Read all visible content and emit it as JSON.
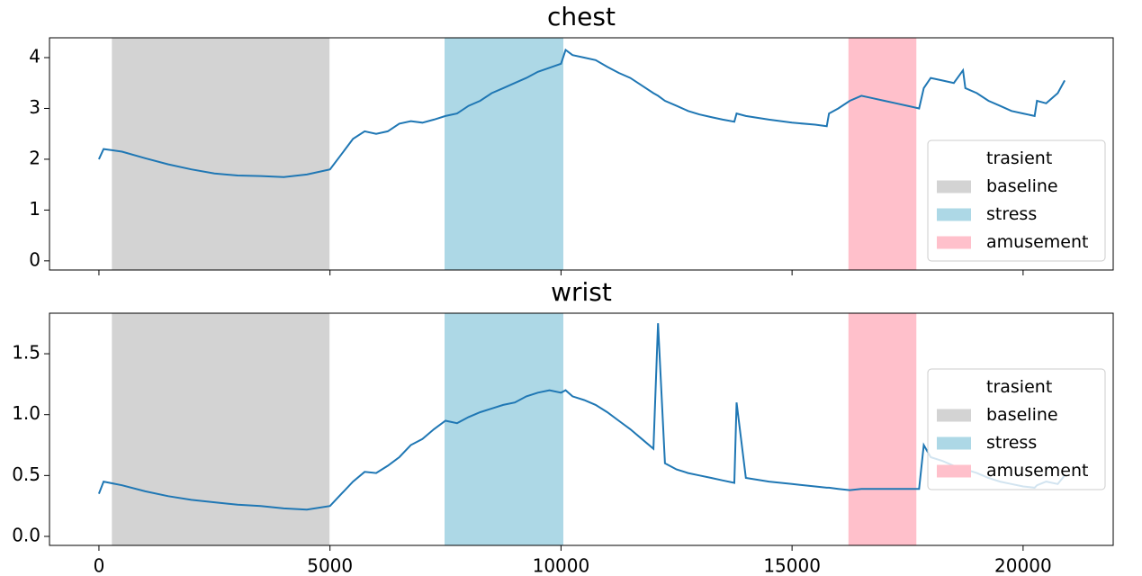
{
  "chart_data": [
    {
      "type": "line",
      "title": "chest",
      "x": [
        0,
        100,
        500,
        1000,
        1500,
        2000,
        2500,
        3000,
        3500,
        4000,
        4500,
        5000,
        5250,
        5500,
        5750,
        6000,
        6250,
        6500,
        6750,
        7000,
        7250,
        7500,
        7750,
        8000,
        8250,
        8500,
        8750,
        9000,
        9250,
        9500,
        9750,
        10000,
        10100,
        10250,
        10500,
        10750,
        11000,
        11250,
        11500,
        11750,
        12000,
        12100,
        12250,
        12500,
        12750,
        13000,
        13250,
        13500,
        13750,
        13800,
        14000,
        14500,
        15000,
        15500,
        15750,
        15800,
        16000,
        16250,
        16500,
        16750,
        17000,
        17250,
        17500,
        17750,
        17850,
        18000,
        18250,
        18500,
        18700,
        18750,
        19000,
        19250,
        19500,
        19750,
        20000,
        20250,
        20300,
        20500,
        20750,
        20900
      ],
      "values": [
        2.0,
        2.2,
        2.15,
        2.02,
        1.9,
        1.8,
        1.72,
        1.68,
        1.67,
        1.65,
        1.7,
        1.8,
        2.1,
        2.4,
        2.55,
        2.5,
        2.55,
        2.7,
        2.75,
        2.72,
        2.78,
        2.85,
        2.9,
        3.05,
        3.15,
        3.3,
        3.4,
        3.5,
        3.6,
        3.72,
        3.8,
        3.88,
        4.15,
        4.05,
        4.0,
        3.95,
        3.82,
        3.7,
        3.6,
        3.45,
        3.3,
        3.25,
        3.15,
        3.05,
        2.95,
        2.88,
        2.83,
        2.78,
        2.74,
        2.9,
        2.85,
        2.78,
        2.72,
        2.68,
        2.65,
        2.9,
        3.0,
        3.15,
        3.25,
        3.2,
        3.15,
        3.1,
        3.05,
        3.0,
        3.4,
        3.6,
        3.55,
        3.5,
        3.75,
        3.4,
        3.3,
        3.15,
        3.05,
        2.95,
        2.9,
        2.85,
        3.15,
        3.1,
        3.3,
        3.55
      ],
      "color": "#1f77b4",
      "xlim": [
        -1070,
        21950
      ],
      "xticks": [
        0,
        5000,
        10000,
        15000,
        20000
      ],
      "ylim": [
        -0.18,
        4.39
      ],
      "yticks": [
        0,
        1,
        2,
        3,
        4
      ],
      "legend": "lower right",
      "spans": [
        {
          "name": "trasient",
          "color": "#ffffff"
        },
        {
          "name": "baseline",
          "color": "#d3d3d3",
          "ranges": [
            [
              280,
              4990
            ]
          ]
        },
        {
          "name": "stress",
          "color": "#add8e6",
          "ranges": [
            [
              7480,
              10050
            ]
          ]
        },
        {
          "name": "amusement",
          "color": "#ffc0cb",
          "ranges": [
            [
              16220,
              17690
            ]
          ]
        }
      ]
    },
    {
      "type": "line",
      "title": "wrist",
      "x": [
        0,
        100,
        500,
        1000,
        1500,
        2000,
        2500,
        3000,
        3500,
        4000,
        4500,
        5000,
        5250,
        5500,
        5750,
        6000,
        6250,
        6500,
        6750,
        7000,
        7250,
        7500,
        7750,
        8000,
        8250,
        8500,
        8750,
        9000,
        9250,
        9500,
        9750,
        10000,
        10100,
        10250,
        10500,
        10750,
        11000,
        11250,
        11500,
        11750,
        12000,
        12100,
        12250,
        12500,
        12750,
        13000,
        13250,
        13500,
        13750,
        13800,
        14000,
        14500,
        15000,
        15500,
        15750,
        15800,
        16000,
        16250,
        16500,
        16750,
        17000,
        17250,
        17500,
        17750,
        17850,
        18000,
        18250,
        18500,
        18700,
        18750,
        19000,
        19250,
        19500,
        19750,
        20000,
        20250,
        20300,
        20500,
        20750,
        20900
      ],
      "values": [
        0.35,
        0.45,
        0.42,
        0.37,
        0.33,
        0.3,
        0.28,
        0.26,
        0.25,
        0.23,
        0.22,
        0.25,
        0.35,
        0.45,
        0.53,
        0.52,
        0.58,
        0.65,
        0.75,
        0.8,
        0.88,
        0.95,
        0.93,
        0.98,
        1.02,
        1.05,
        1.08,
        1.1,
        1.15,
        1.18,
        1.2,
        1.18,
        1.2,
        1.15,
        1.12,
        1.08,
        1.02,
        0.95,
        0.88,
        0.8,
        0.72,
        1.75,
        0.6,
        0.55,
        0.52,
        0.5,
        0.48,
        0.46,
        0.44,
        1.1,
        0.48,
        0.45,
        0.43,
        0.41,
        0.4,
        0.4,
        0.39,
        0.38,
        0.39,
        0.39,
        0.39,
        0.39,
        0.39,
        0.39,
        0.75,
        0.65,
        0.62,
        0.58,
        0.55,
        0.55,
        0.52,
        0.48,
        0.45,
        0.43,
        0.41,
        0.4,
        0.42,
        0.45,
        0.43,
        0.5
      ],
      "color": "#1f77b4",
      "xlim": [
        -1070,
        21950
      ],
      "xticks": [
        0,
        5000,
        10000,
        15000,
        20000
      ],
      "ylim": [
        -0.074,
        1.833
      ],
      "yticks": [
        {
          "value": 0,
          "label": "0.0"
        },
        0.5,
        {
          "value": 1,
          "label": "1.0"
        },
        1.5
      ],
      "legend": "center right",
      "spans": [
        {
          "name": "trasient",
          "color": "#ffffff"
        },
        {
          "name": "baseline",
          "color": "#d3d3d3",
          "ranges": [
            [
              280,
              4990
            ]
          ]
        },
        {
          "name": "stress",
          "color": "#add8e6",
          "ranges": [
            [
              7480,
              10050
            ]
          ]
        },
        {
          "name": "amusement",
          "color": "#ffc0cb",
          "ranges": [
            [
              16220,
              17690
            ]
          ]
        }
      ]
    }
  ]
}
